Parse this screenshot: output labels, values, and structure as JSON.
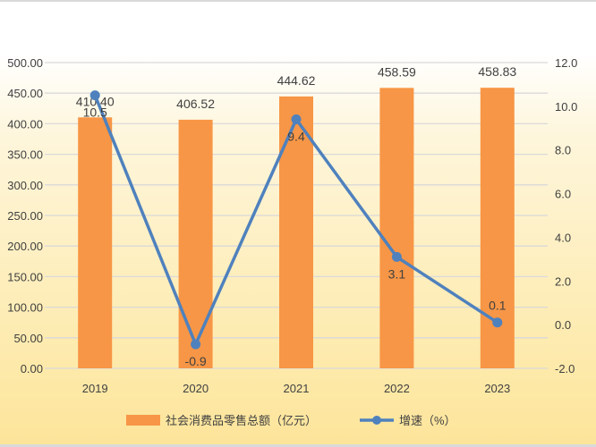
{
  "chart_data": {
    "type": "bar+line",
    "categories": [
      "2019",
      "2020",
      "2021",
      "2022",
      "2023"
    ],
    "series": [
      {
        "name": "社会消费品零售总额（亿元）",
        "type": "bar",
        "axis": "left",
        "values": [
          410.4,
          406.52,
          444.62,
          458.59,
          458.83
        ],
        "labels": [
          "410.40",
          "406.52",
          "444.62",
          "458.59",
          "458.83"
        ],
        "color": "#f79646"
      },
      {
        "name": "增速（%）",
        "type": "line",
        "axis": "right",
        "values": [
          10.5,
          -0.9,
          9.4,
          3.1,
          0.1
        ],
        "labels": [
          "10.5",
          "-0.9",
          "9.4",
          "3.1",
          "0.1"
        ],
        "color": "#4f81bd"
      }
    ],
    "left_axis": {
      "ylim": [
        0,
        500
      ],
      "ticks": [
        "0.00",
        "50.00",
        "100.00",
        "150.00",
        "200.00",
        "250.00",
        "300.00",
        "350.00",
        "400.00",
        "450.00",
        "500.00"
      ]
    },
    "right_axis": {
      "ylim": [
        -2,
        12
      ],
      "ticks": [
        "-2.0",
        "0.0",
        "2.0",
        "4.0",
        "6.0",
        "8.0",
        "10.0",
        "12.0"
      ]
    },
    "grid": true,
    "legend": "bottom"
  }
}
